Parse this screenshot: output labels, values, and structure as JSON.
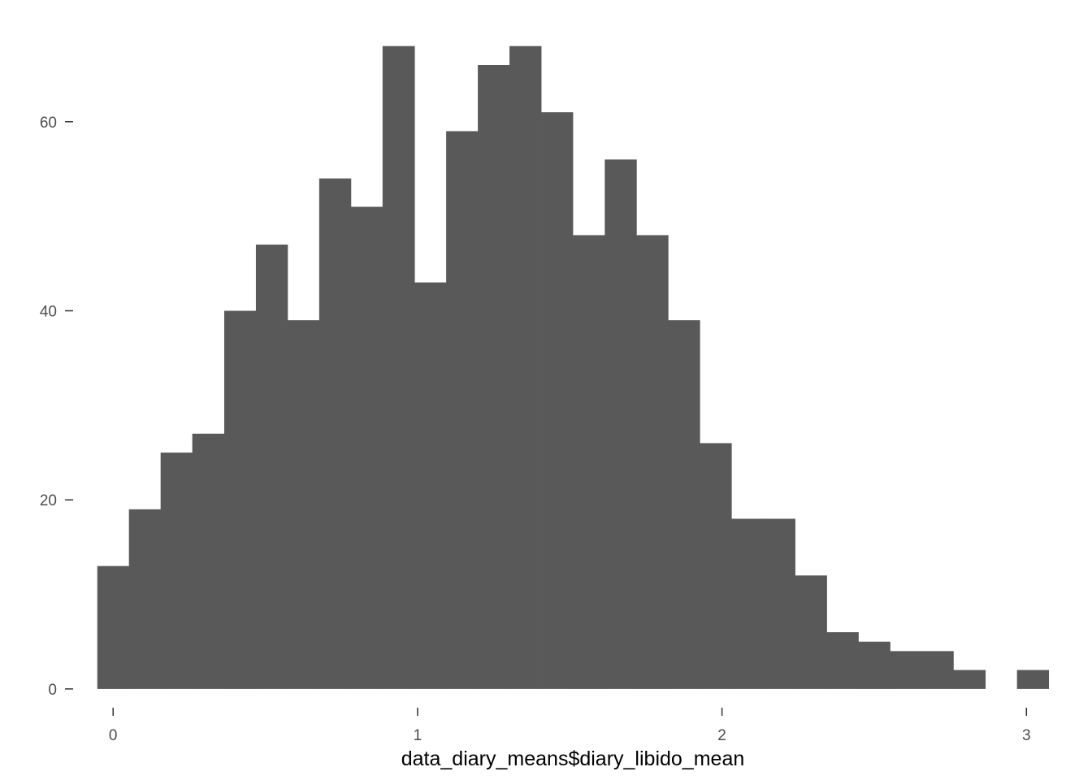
{
  "chart_data": {
    "type": "bar",
    "subtype": "histogram",
    "title": "",
    "xlabel": "data_diary_means$diary_libido_mean",
    "ylabel": "",
    "bin_width": 0.1042,
    "bins": [
      {
        "x0": -0.052,
        "x1": 0.052,
        "count": 13
      },
      {
        "x0": 0.052,
        "x1": 0.156,
        "count": 19
      },
      {
        "x0": 0.156,
        "x1": 0.26,
        "count": 25
      },
      {
        "x0": 0.26,
        "x1": 0.365,
        "count": 27
      },
      {
        "x0": 0.365,
        "x1": 0.469,
        "count": 40
      },
      {
        "x0": 0.469,
        "x1": 0.573,
        "count": 47
      },
      {
        "x0": 0.573,
        "x1": 0.677,
        "count": 39
      },
      {
        "x0": 0.677,
        "x1": 0.781,
        "count": 54
      },
      {
        "x0": 0.781,
        "x1": 0.885,
        "count": 51
      },
      {
        "x0": 0.885,
        "x1": 0.99,
        "count": 68
      },
      {
        "x0": 0.99,
        "x1": 1.094,
        "count": 43
      },
      {
        "x0": 1.094,
        "x1": 1.198,
        "count": 59
      },
      {
        "x0": 1.198,
        "x1": 1.302,
        "count": 66
      },
      {
        "x0": 1.302,
        "x1": 1.406,
        "count": 68
      },
      {
        "x0": 1.406,
        "x1": 1.51,
        "count": 61
      },
      {
        "x0": 1.51,
        "x1": 1.615,
        "count": 48
      },
      {
        "x0": 1.615,
        "x1": 1.719,
        "count": 56
      },
      {
        "x0": 1.719,
        "x1": 1.823,
        "count": 48
      },
      {
        "x0": 1.823,
        "x1": 1.927,
        "count": 39
      },
      {
        "x0": 1.927,
        "x1": 2.031,
        "count": 26
      },
      {
        "x0": 2.031,
        "x1": 2.135,
        "count": 18
      },
      {
        "x0": 2.135,
        "x1": 2.24,
        "count": 18
      },
      {
        "x0": 2.24,
        "x1": 2.344,
        "count": 12
      },
      {
        "x0": 2.344,
        "x1": 2.448,
        "count": 6
      },
      {
        "x0": 2.448,
        "x1": 2.552,
        "count": 5
      },
      {
        "x0": 2.552,
        "x1": 2.656,
        "count": 4
      },
      {
        "x0": 2.656,
        "x1": 2.76,
        "count": 4
      },
      {
        "x0": 2.76,
        "x1": 2.865,
        "count": 2
      },
      {
        "x0": 2.865,
        "x1": 2.969,
        "count": 0
      },
      {
        "x0": 2.969,
        "x1": 3.073,
        "count": 2
      }
    ],
    "x_ticks": [
      0,
      1,
      2,
      3
    ],
    "x_tick_labels": [
      "0",
      "1",
      "2",
      "3"
    ],
    "y_ticks": [
      0,
      20,
      40,
      60
    ],
    "y_tick_labels": [
      "0",
      "20",
      "40",
      "60"
    ],
    "xlim": [
      -0.11,
      3.13
    ],
    "ylim": [
      -2.5,
      71.5
    ],
    "grid": false,
    "bar_color": "#595959",
    "background_color": "#ffffff"
  }
}
